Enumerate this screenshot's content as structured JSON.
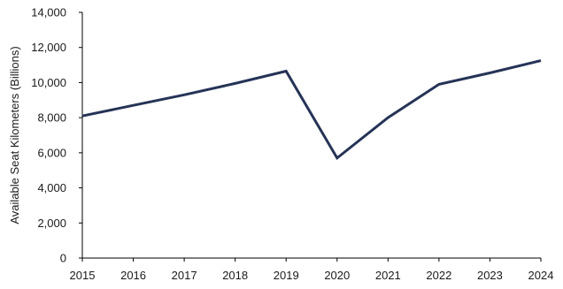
{
  "chart_data": {
    "type": "line",
    "title": "",
    "xlabel": "",
    "ylabel": "Available Seat Kilometers (Billions)",
    "categories": [
      "2015",
      "2016",
      "2017",
      "2018",
      "2019",
      "2020",
      "2021",
      "2022",
      "2023",
      "2024"
    ],
    "series": [
      {
        "values": [
          8100,
          8700,
          9300,
          9950,
          10650,
          5700,
          8000,
          9900,
          10550,
          11250
        ]
      }
    ],
    "ylim": [
      0,
      14000
    ],
    "yticks": [
      0,
      2000,
      4000,
      6000,
      8000,
      10000,
      12000,
      14000
    ],
    "ytick_labels": [
      "0",
      "2,000",
      "4,000",
      "6,000",
      "8,000",
      "10,000",
      "12,000",
      "14,000"
    ],
    "grid": false,
    "legend": "none",
    "line_color": "#253356"
  }
}
